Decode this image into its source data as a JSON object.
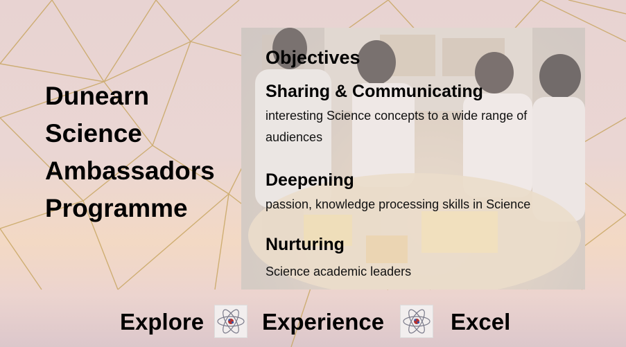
{
  "title": {
    "lines": [
      "Dunearn",
      "Science",
      "Ambassadors",
      "Programme"
    ]
  },
  "objectives": {
    "heading": "Objectives",
    "items": [
      {
        "head": "Sharing & Communicating",
        "line1": "interesting Science concepts to a wide range of",
        "line2": "audiences"
      },
      {
        "head": "Deepening",
        "line1": "passion, knowledge processing skills in Science"
      },
      {
        "head": "Nurturing",
        "line1": "Science academic leaders"
      }
    ]
  },
  "footer": {
    "words": [
      "Explore",
      "Experience",
      "Excel"
    ],
    "icons": [
      "atom-icon",
      "atom-icon"
    ]
  },
  "colors": {
    "background_top": "#e8d3d2",
    "background_glow": "#f3d9c4",
    "lines": "#c9a764",
    "text": "#000000"
  }
}
